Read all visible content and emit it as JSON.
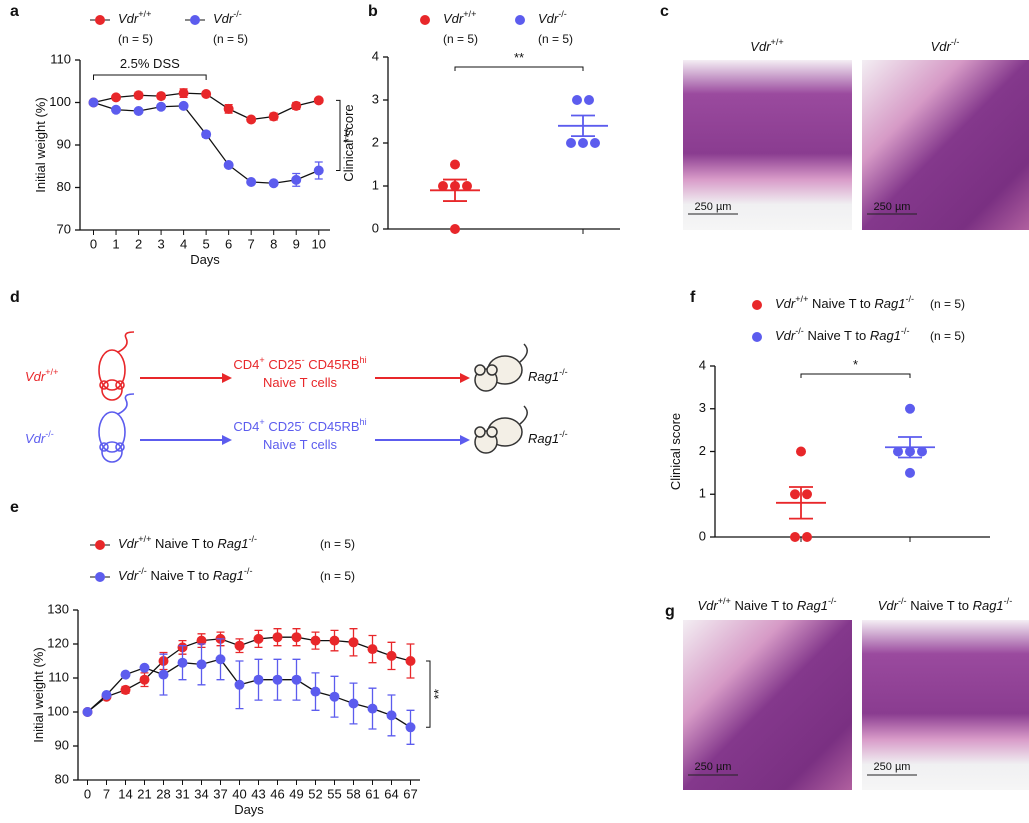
{
  "chart_data": [
    {
      "panel_label": "a",
      "type": "line",
      "x": [
        0,
        1,
        2,
        3,
        4,
        5,
        6,
        7,
        8,
        9,
        10
      ],
      "xlim": [
        -0.6,
        10.5
      ],
      "xticks": [
        0,
        1,
        2,
        3,
        4,
        5,
        6,
        7,
        8,
        9,
        10
      ],
      "ylim": [
        70,
        110
      ],
      "yticks": [
        70,
        80,
        90,
        100,
        110
      ],
      "xlabel": "Days",
      "ylabel": "Initial weight (%)",
      "annotation": "2.5% DSS",
      "treatment_days": [
        0,
        5
      ],
      "significance": "***",
      "series": [
        {
          "name": "Vdr+/+",
          "n_label": "(n = 5)",
          "color": "#e8272a",
          "values": [
            100,
            101.2,
            101.7,
            101.5,
            102.2,
            102,
            98.5,
            96,
            96.7,
            99.2,
            100.5
          ],
          "errors": [
            0.3,
            0.5,
            0.7,
            0.6,
            1,
            0.5,
            1,
            0.5,
            0.8,
            0.8,
            0.5
          ]
        },
        {
          "name": "Vdr-/-",
          "n_label": "(n = 5)",
          "color": "#5c5cee",
          "values": [
            100,
            98.3,
            98,
            99,
            99.2,
            92.5,
            85.3,
            81.3,
            81,
            81.8,
            84
          ],
          "errors": [
            0.3,
            0.3,
            0.5,
            0.5,
            0.5,
            0.7,
            0.5,
            0.4,
            0.4,
            1.5,
            2
          ]
        }
      ]
    },
    {
      "panel_label": "b",
      "type": "scatter",
      "ylim": [
        0,
        4
      ],
      "yticks": [
        0,
        1,
        2,
        3,
        4
      ],
      "ylabel": "Clinical score",
      "significance": "**",
      "series": [
        {
          "name": "Vdr+/+",
          "n_label": "(n = 5)",
          "color": "#e8272a",
          "values": [
            1.5,
            1,
            1,
            1,
            0
          ],
          "mean": 0.9,
          "sem": 0.25
        },
        {
          "name": "Vdr-/-",
          "n_label": "(n = 5)",
          "color": "#5c5cee",
          "values": [
            3,
            3,
            2,
            2,
            2
          ],
          "mean": 2.4,
          "sem": 0.24
        }
      ]
    },
    {
      "panel_label": "e",
      "type": "line",
      "categories": [
        0,
        7,
        14,
        21,
        28,
        31,
        34,
        37,
        40,
        43,
        46,
        49,
        52,
        55,
        58,
        61,
        64,
        67
      ],
      "ylim": [
        80,
        130
      ],
      "yticks": [
        80,
        90,
        100,
        110,
        120,
        130
      ],
      "xlabel": "Days",
      "ylabel": "Initial weight (%)",
      "significance": "**",
      "series": [
        {
          "name": "Vdr+/+ Naive T to Rag1-/-",
          "n_label": "(n = 5)",
          "color": "#e8272a",
          "values": [
            100,
            104.5,
            106.5,
            109.5,
            115,
            119,
            121,
            121.5,
            119.5,
            121.5,
            122,
            122,
            121,
            121,
            120.5,
            118.5,
            116.5,
            115
          ],
          "errors": [
            0,
            0.5,
            1,
            2,
            2.5,
            2,
            2,
            2,
            2,
            2.5,
            2.5,
            2.5,
            2.5,
            3,
            4,
            4,
            4,
            5
          ]
        },
        {
          "name": "Vdr-/- Naive T to Rag1-/-",
          "n_label": "(n = 5)",
          "color": "#5c5cee",
          "values": [
            100,
            105,
            111,
            113,
            111,
            114.5,
            114,
            115.5,
            108,
            109.5,
            109.5,
            109.5,
            106,
            104.5,
            102.5,
            101,
            99,
            95.5
          ],
          "errors": [
            0,
            0.5,
            0.5,
            0.5,
            6,
            5,
            6,
            6,
            7,
            6,
            6,
            6,
            5.5,
            6,
            6,
            6,
            6,
            5
          ]
        }
      ]
    },
    {
      "panel_label": "f",
      "type": "scatter",
      "ylim": [
        0,
        4
      ],
      "yticks": [
        0,
        1,
        2,
        3,
        4
      ],
      "ylabel": "Clinical score",
      "significance": "*",
      "series": [
        {
          "name": "Vdr+/+ Naive T to Rag1-/-",
          "n_label": "(n = 5)",
          "color": "#e8272a",
          "values": [
            2,
            1,
            1,
            0,
            0
          ],
          "mean": 0.8,
          "sem": 0.37
        },
        {
          "name": "Vdr-/- Naive T to Rag1-/-",
          "n_label": "(n = 5)",
          "color": "#5c5cee",
          "values": [
            3,
            2,
            2,
            2,
            1.5
          ],
          "mean": 2.1,
          "sem": 0.24
        }
      ]
    }
  ],
  "images": [
    {
      "panel_label": "c",
      "items": [
        {
          "caption": "Vdr+/+",
          "scale_bar": "250 µm"
        },
        {
          "caption": "Vdr-/-",
          "scale_bar": "250 µm"
        }
      ]
    },
    {
      "panel_label": "g",
      "items": [
        {
          "caption": "Vdr+/+ Naive T to Rag1-/-",
          "scale_bar": "250 µm"
        },
        {
          "caption": "Vdr-/- Naive T to Rag1-/-",
          "scale_bar": "250 µm"
        }
      ]
    }
  ],
  "diagram": {
    "panel_label": "d",
    "rows": [
      {
        "donor": "Vdr+/+",
        "cells": "CD4+ CD25- CD45RBhi",
        "cells_line2": "Naive T cells",
        "recipient": "Rag1-/-"
      },
      {
        "donor": "Vdr-/-",
        "cells": "CD4+ CD25- CD45RBhi",
        "cells_line2": "Naive T cells",
        "recipient": "Rag1-/-"
      }
    ]
  }
}
